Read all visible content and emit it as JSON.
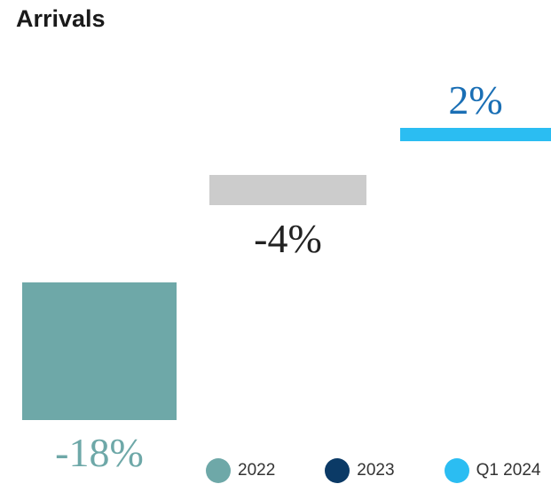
{
  "chart_data": {
    "type": "bar",
    "title": "Arrivals",
    "categories": [
      "2022",
      "2023",
      "Q1 2024"
    ],
    "values": [
      -18,
      -4,
      2
    ],
    "value_labels": [
      "-18%",
      "-4%",
      "2%"
    ],
    "unit": "%",
    "colors": {
      "bars": [
        "#6ea8a8",
        "#cccccc",
        "#2bbdf2"
      ],
      "labels": [
        "#6ea8a8",
        "#222222",
        "#1a6fb5"
      ],
      "legend": [
        "#6ea8a8",
        "#0b3a66",
        "#2bbdf2"
      ]
    },
    "legend": {
      "placement": "bottom-right",
      "entries": [
        "2022",
        "2023",
        "Q1 2024"
      ]
    },
    "grid": false
  }
}
